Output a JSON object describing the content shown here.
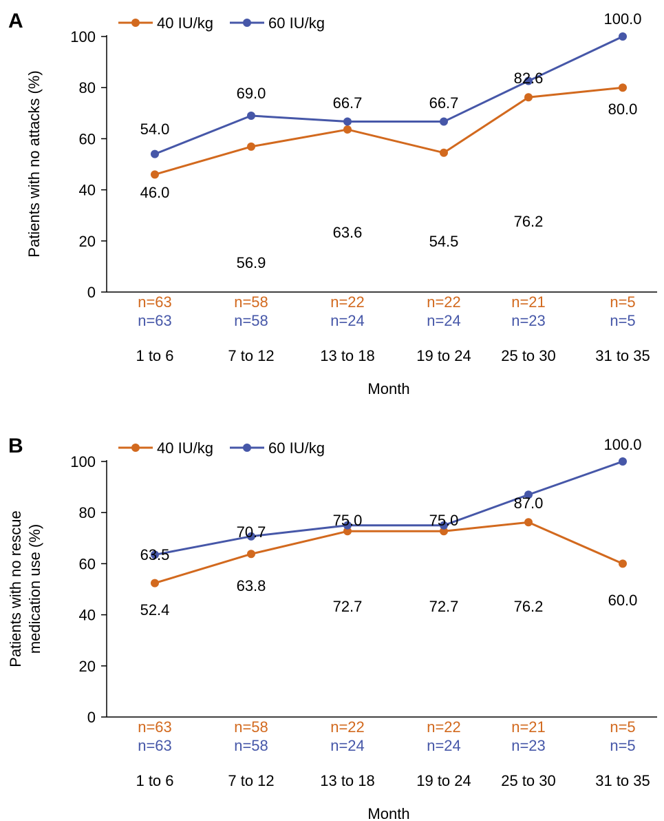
{
  "chart_data": [
    {
      "panel": "A",
      "type": "line",
      "categories": [
        "1 to 6",
        "7 to 12",
        "13 to 18",
        "19 to 24",
        "25 to 30",
        "31 to 35"
      ],
      "xlabel": "Month",
      "ylabel": "Patients with no attacks (%)",
      "ylim": [
        0,
        100
      ],
      "yticks": [
        0,
        20,
        40,
        60,
        80,
        100
      ],
      "grid": false,
      "legend_position": "top-left",
      "series": [
        {
          "name": "40 IU/kg",
          "color": "#D2691E",
          "values": [
            46.0,
            56.9,
            63.6,
            54.5,
            76.2,
            80.0
          ],
          "labels": [
            "46.0",
            "56.9",
            "63.6",
            "54.5",
            "76.2",
            "80.0"
          ],
          "n": [
            "n=63",
            "n=58",
            "n=22",
            "n=22",
            "n=21",
            "n=5"
          ]
        },
        {
          "name": "60 IU/kg",
          "color": "#4657A8",
          "values": [
            54.0,
            69.0,
            66.7,
            66.7,
            82.6,
            100.0
          ],
          "labels": [
            "54.0",
            "69.0",
            "66.7",
            "66.7",
            "82.6",
            "100.0"
          ],
          "n": [
            "n=63",
            "n=58",
            "n=24",
            "n=24",
            "n=23",
            "n=5"
          ]
        }
      ]
    },
    {
      "panel": "B",
      "type": "line",
      "categories": [
        "1 to 6",
        "7 to 12",
        "13 to 18",
        "19 to 24",
        "25 to 30",
        "31 to 35"
      ],
      "xlabel": "Month",
      "ylabel": [
        "Patients with no rescue",
        "medication use (%)"
      ],
      "ylim": [
        0,
        100
      ],
      "yticks": [
        0,
        20,
        40,
        60,
        80,
        100
      ],
      "grid": false,
      "legend_position": "top-left",
      "series": [
        {
          "name": "40 IU/kg",
          "color": "#D2691E",
          "values": [
            52.4,
            63.8,
            72.7,
            72.7,
            76.2,
            60.0
          ],
          "labels": [
            "52.4",
            "63.8",
            "72.7",
            "72.7",
            "76.2",
            "60.0"
          ],
          "n": [
            "n=63",
            "n=58",
            "n=22",
            "n=22",
            "n=21",
            "n=5"
          ]
        },
        {
          "name": "60 IU/kg",
          "color": "#4657A8",
          "values": [
            63.5,
            70.7,
            75.0,
            75.0,
            87.0,
            100.0
          ],
          "labels": [
            "63.5",
            "70.7",
            "75.0",
            "75.0",
            "87.0",
            "100.0"
          ],
          "n": [
            "n=63",
            "n=58",
            "n=24",
            "n=24",
            "n=23",
            "n=5"
          ]
        }
      ]
    }
  ]
}
